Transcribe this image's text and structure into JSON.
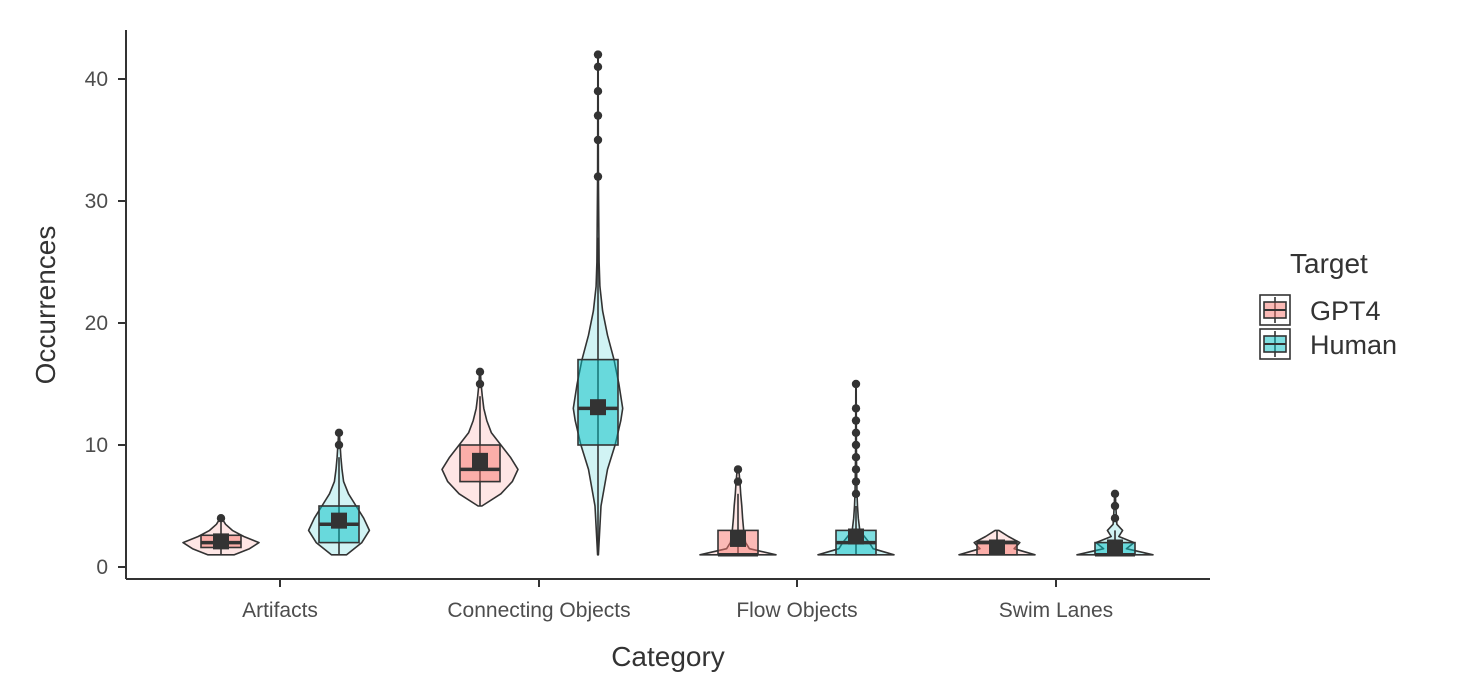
{
  "chart_data": {
    "type": "violin+boxplot",
    "xlabel": "Category",
    "ylabel": "Occurrences",
    "categories": [
      "Artifacts",
      "Connecting Objects",
      "Flow Objects",
      "Swim Lanes"
    ],
    "ylim": [
      -1,
      44
    ],
    "yticks": [
      0,
      10,
      20,
      30,
      40
    ],
    "grid": false,
    "legend": {
      "title": "Target",
      "placement": "right",
      "entries": [
        "GPT4",
        "Human"
      ]
    },
    "colors": {
      "GPT4": "#f8766d",
      "Human": "#00bfc4",
      "outline": "#333333"
    },
    "series": [
      {
        "name": "GPT4",
        "groups": [
          {
            "category": "Artifacts",
            "min": 1,
            "q1": 1.6,
            "median": 2,
            "q3": 2.6,
            "max": 4,
            "mean": 2.1,
            "outliers": [
              4
            ],
            "density": [
              [
                1,
                0.35
              ],
              [
                1.5,
                0.75
              ],
              [
                2,
                1.0
              ],
              [
                2.5,
                0.6
              ],
              [
                3,
                0.3
              ],
              [
                3.5,
                0.12
              ],
              [
                4,
                0.02
              ]
            ]
          },
          {
            "category": "Connecting Objects",
            "min": 5,
            "q1": 7,
            "median": 8,
            "q3": 10,
            "max": 14,
            "mean": 8.7,
            "outliers": [
              15,
              16
            ],
            "density": [
              [
                5,
                0.05
              ],
              [
                6,
                0.55
              ],
              [
                7,
                0.85
              ],
              [
                8,
                1.0
              ],
              [
                9,
                0.8
              ],
              [
                10,
                0.55
              ],
              [
                11,
                0.3
              ],
              [
                12,
                0.18
              ],
              [
                13,
                0.1
              ],
              [
                14,
                0.06
              ],
              [
                15,
                0.03
              ],
              [
                16,
                0.01
              ]
            ]
          },
          {
            "category": "Flow Objects",
            "min": 1,
            "q1": 1,
            "median": 1,
            "q3": 3,
            "max": 6,
            "mean": 2.3,
            "outliers": [
              7,
              8
            ],
            "density": [
              [
                1,
                1.0
              ],
              [
                1.5,
                0.3
              ],
              [
                2,
                0.2
              ],
              [
                3,
                0.15
              ],
              [
                4,
                0.12
              ],
              [
                5,
                0.1
              ],
              [
                6,
                0.07
              ],
              [
                7,
                0.05
              ],
              [
                8,
                0.02
              ]
            ]
          },
          {
            "category": "Swim Lanes",
            "min": 1,
            "q1": 1,
            "median": 2,
            "q3": 2.1,
            "max": 3,
            "mean": 1.6,
            "outliers": [],
            "density": [
              [
                1,
                1.0
              ],
              [
                1.5,
                0.45
              ],
              [
                2,
                0.6
              ],
              [
                2.5,
                0.3
              ],
              [
                3,
                0.05
              ]
            ]
          }
        ]
      },
      {
        "name": "Human",
        "groups": [
          {
            "category": "Artifacts",
            "min": 1,
            "q1": 2,
            "median": 3.5,
            "q3": 5,
            "max": 9,
            "mean": 3.8,
            "outliers": [
              10,
              11
            ],
            "density": [
              [
                1,
                0.2
              ],
              [
                2,
                0.6
              ],
              [
                3,
                0.8
              ],
              [
                4,
                0.65
              ],
              [
                5,
                0.45
              ],
              [
                6,
                0.25
              ],
              [
                7,
                0.12
              ],
              [
                8,
                0.08
              ],
              [
                9,
                0.05
              ],
              [
                10,
                0.03
              ],
              [
                11,
                0.01
              ]
            ]
          },
          {
            "category": "Connecting Objects",
            "min": 1,
            "q1": 10,
            "median": 13,
            "q3": 17,
            "max": 27,
            "mean": 13.1,
            "outliers": [
              32,
              35,
              37,
              39,
              41,
              42
            ],
            "density": [
              [
                1,
                0.01
              ],
              [
                5,
                0.08
              ],
              [
                8,
                0.25
              ],
              [
                10,
                0.45
              ],
              [
                12,
                0.6
              ],
              [
                13,
                0.65
              ],
              [
                15,
                0.55
              ],
              [
                17,
                0.42
              ],
              [
                19,
                0.25
              ],
              [
                21,
                0.12
              ],
              [
                23,
                0.05
              ],
              [
                25,
                0.03
              ],
              [
                28,
                0.02
              ],
              [
                32,
                0.01
              ],
              [
                36,
                0.008
              ],
              [
                42,
                0.004
              ]
            ]
          },
          {
            "category": "Flow Objects",
            "min": 1,
            "q1": 1,
            "median": 2,
            "q3": 3,
            "max": 5,
            "mean": 2.5,
            "outliers": [
              6,
              7,
              8,
              9,
              10,
              11,
              12,
              13,
              15
            ],
            "density": [
              [
                1,
                1.0
              ],
              [
                1.5,
                0.45
              ],
              [
                2,
                0.35
              ],
              [
                2.5,
                0.22
              ],
              [
                3,
                0.1
              ],
              [
                4,
                0.06
              ],
              [
                5,
                0.04
              ],
              [
                6,
                0.025
              ],
              [
                7,
                0.02
              ],
              [
                8,
                0.015
              ],
              [
                10,
                0.01
              ],
              [
                12,
                0.008
              ],
              [
                15,
                0.004
              ]
            ]
          },
          {
            "category": "Swim Lanes",
            "min": 1,
            "q1": 1,
            "median": 1,
            "q3": 2,
            "max": 3,
            "mean": 1.6,
            "outliers": [
              4,
              5,
              6
            ],
            "density": [
              [
                1,
                1.0
              ],
              [
                1.5,
                0.3
              ],
              [
                2,
                0.5
              ],
              [
                2.5,
                0.1
              ],
              [
                3,
                0.2
              ],
              [
                3.5,
                0.05
              ],
              [
                4,
                0.04
              ],
              [
                5,
                0.02
              ],
              [
                6,
                0.01
              ]
            ]
          }
        ]
      }
    ]
  }
}
